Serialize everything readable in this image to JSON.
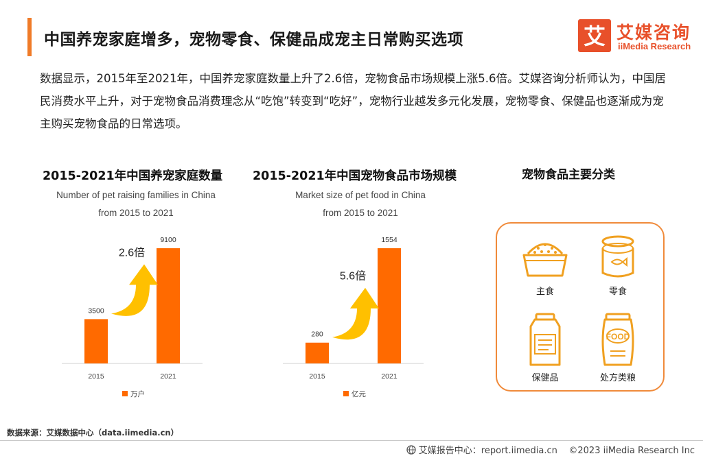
{
  "header": {
    "title": "中国养宠家庭增多，宠物零食、保健品成宠主日常购买选项",
    "logo_cn": "艾媒咨询",
    "logo_en": "iiMedia Research"
  },
  "paragraph": "数据显示，2015年至2021年，中国养宠家庭数量上升了2.6倍，宠物食品市场规模上涨5.6倍。艾媒咨询分析师认为，中国居民消费水平上升，对于宠物食品消费理念从“吃饱”转变到“吃好”，宠物行业越发多元化发展，宠物零食、保健品也逐渐成为宠主购买宠物食品的日常选项。",
  "chart_data": [
    {
      "type": "bar",
      "title": "2015-2021年中国养宠家庭数量",
      "subtitle_line1": "Number of pet raising families in China",
      "subtitle_line2": "from 2015 to 2021",
      "categories": [
        "2015",
        "2021"
      ],
      "series": [
        {
          "name": "万户",
          "values": [
            3500,
            9100
          ]
        }
      ],
      "annotation": "2.6倍",
      "ylim": [
        0,
        9100
      ],
      "color": "#ff6a00"
    },
    {
      "type": "bar",
      "title": "2015-2021年中国宠物食品市场规模",
      "subtitle_line1": "Market size of pet food in China",
      "subtitle_line2": "from 2015 to 2021",
      "categories": [
        "2015",
        "2021"
      ],
      "series": [
        {
          "name": "亿元",
          "values": [
            280,
            1554
          ]
        }
      ],
      "annotation": "5.6倍",
      "ylim": [
        0,
        1554
      ],
      "color": "#ff6a00"
    }
  ],
  "categories_panel": {
    "title": "宠物食品主要分类",
    "items": [
      {
        "label": "主食",
        "icon": "food-bowl-icon"
      },
      {
        "label": "零食",
        "icon": "fish-can-icon"
      },
      {
        "label": "保健品",
        "icon": "supplement-bottle-icon"
      },
      {
        "label": "处方类粮",
        "icon": "food-bag-icon"
      }
    ]
  },
  "footer": {
    "source": "数据来源：艾媒数据中心（data.iimedia.cn）",
    "report_center": "艾媒报告中心：report.iimedia.cn",
    "copyright": "©2023  iiMedia Research Inc"
  },
  "colors": {
    "accent": "#f07b28",
    "bar": "#ff6a00",
    "arrow": "#ffc000",
    "logo": "#e8502a"
  }
}
